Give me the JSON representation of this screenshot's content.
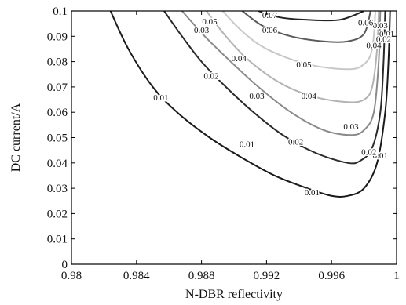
{
  "chart_data": {
    "type": "contour",
    "xlabel": "N-DBR reflectivity",
    "ylabel": "DC current/A",
    "xlim": [
      0.98,
      1.0
    ],
    "ylim": [
      0,
      0.1
    ],
    "x_ticks": [
      0.98,
      0.984,
      0.988,
      0.992,
      0.996,
      1.0
    ],
    "x_tick_labels": [
      "0.98",
      "0.984",
      "0.988",
      "0.992",
      "0.996",
      "1"
    ],
    "y_ticks": [
      0,
      0.01,
      0.02,
      0.03,
      0.04,
      0.05,
      0.06,
      0.07,
      0.08,
      0.09,
      0.1
    ],
    "y_tick_labels": [
      "0",
      "0.01",
      "0.02",
      "0.03",
      "0.04",
      "0.05",
      "0.06",
      "0.07",
      "0.08",
      "0.09",
      "0.1"
    ],
    "grid": false,
    "contours": [
      {
        "level": 0.01,
        "color": "#1a1a1a",
        "points": [
          [
            0.9824,
            0.1
          ],
          [
            0.9835,
            0.085
          ],
          [
            0.985,
            0.07
          ],
          [
            0.9865,
            0.06
          ],
          [
            0.9885,
            0.05
          ],
          [
            0.9905,
            0.042
          ],
          [
            0.9925,
            0.035
          ],
          [
            0.9945,
            0.03
          ],
          [
            0.996,
            0.027
          ],
          [
            0.997,
            0.027
          ],
          [
            0.998,
            0.03
          ],
          [
            0.9988,
            0.04
          ],
          [
            0.9993,
            0.06
          ],
          [
            0.9995,
            0.08
          ],
          [
            0.9996,
            0.1
          ]
        ],
        "labels": [
          {
            "x": 0.9855,
            "y": 0.066,
            "text": "0.01"
          },
          {
            "x": 0.9908,
            "y": 0.0475,
            "text": "0.01"
          },
          {
            "x": 0.9948,
            "y": 0.0285,
            "text": "0.01"
          },
          {
            "x": 0.999,
            "y": 0.043,
            "text": "0.01"
          },
          {
            "x": 0.9994,
            "y": 0.091,
            "text": "0.01"
          }
        ]
      },
      {
        "level": 0.02,
        "color": "#2a2a2a",
        "points": [
          [
            0.9857,
            0.1
          ],
          [
            0.9868,
            0.09
          ],
          [
            0.988,
            0.08
          ],
          [
            0.9895,
            0.07
          ],
          [
            0.9912,
            0.06
          ],
          [
            0.993,
            0.051
          ],
          [
            0.995,
            0.044
          ],
          [
            0.997,
            0.04
          ],
          [
            0.9978,
            0.041
          ],
          [
            0.9985,
            0.046
          ],
          [
            0.999,
            0.06
          ],
          [
            0.9992,
            0.08
          ],
          [
            0.9993,
            0.1
          ]
        ],
        "labels": [
          {
            "x": 0.9886,
            "y": 0.0745,
            "text": "0.02"
          },
          {
            "x": 0.9938,
            "y": 0.0485,
            "text": "0.02"
          },
          {
            "x": 0.9983,
            "y": 0.0445,
            "text": "0.02"
          },
          {
            "x": 0.9992,
            "y": 0.089,
            "text": "0.02"
          }
        ]
      },
      {
        "level": 0.03,
        "color": "#8a8a8a",
        "points": [
          [
            0.9868,
            0.1
          ],
          [
            0.9882,
            0.09
          ],
          [
            0.9898,
            0.08
          ],
          [
            0.9915,
            0.07
          ],
          [
            0.9935,
            0.06
          ],
          [
            0.9955,
            0.053
          ],
          [
            0.9972,
            0.051
          ],
          [
            0.998,
            0.053
          ],
          [
            0.9986,
            0.06
          ],
          [
            0.9989,
            0.08
          ],
          [
            0.999,
            0.1
          ]
        ],
        "labels": [
          {
            "x": 0.988,
            "y": 0.0925,
            "text": "0.03"
          },
          {
            "x": 0.9914,
            "y": 0.0665,
            "text": "0.03"
          },
          {
            "x": 0.9972,
            "y": 0.0545,
            "text": "0.03"
          },
          {
            "x": 0.999,
            "y": 0.0945,
            "text": "0.03"
          }
        ]
      },
      {
        "level": 0.04,
        "color": "#b3b3b3",
        "points": [
          [
            0.9883,
            0.1
          ],
          [
            0.9895,
            0.09
          ],
          [
            0.991,
            0.08
          ],
          [
            0.993,
            0.071
          ],
          [
            0.995,
            0.066
          ],
          [
            0.997,
            0.064
          ],
          [
            0.998,
            0.065
          ],
          [
            0.9985,
            0.07
          ],
          [
            0.9988,
            0.085
          ],
          [
            0.9989,
            0.1
          ]
        ],
        "labels": [
          {
            "x": 0.9903,
            "y": 0.0815,
            "text": "0.04"
          },
          {
            "x": 0.9946,
            "y": 0.0665,
            "text": "0.04"
          },
          {
            "x": 0.9986,
            "y": 0.0865,
            "text": "0.04"
          }
        ]
      },
      {
        "level": 0.05,
        "color": "#c8c8c8",
        "points": [
          [
            0.9893,
            0.1
          ],
          [
            0.9905,
            0.092
          ],
          [
            0.992,
            0.085
          ],
          [
            0.9945,
            0.079
          ],
          [
            0.997,
            0.077
          ],
          [
            0.998,
            0.079
          ],
          [
            0.9985,
            0.085
          ],
          [
            0.9987,
            0.1
          ]
        ],
        "labels": [
          {
            "x": 0.9885,
            "y": 0.096,
            "text": "0.05"
          },
          {
            "x": 0.9943,
            "y": 0.079,
            "text": "0.05"
          }
        ]
      },
      {
        "level": 0.06,
        "color": "#5a5a5a",
        "points": [
          [
            0.9905,
            0.1
          ],
          [
            0.9918,
            0.094
          ],
          [
            0.9935,
            0.09
          ],
          [
            0.9955,
            0.088
          ],
          [
            0.997,
            0.088
          ],
          [
            0.998,
            0.091
          ],
          [
            0.9984,
            0.1
          ]
        ],
        "labels": [
          {
            "x": 0.9922,
            "y": 0.0925,
            "text": "0.06"
          },
          {
            "x": 0.9981,
            "y": 0.0955,
            "text": "0.06"
          }
        ]
      },
      {
        "level": 0.07,
        "color": "#222222",
        "points": [
          [
            0.9915,
            0.1
          ],
          [
            0.9928,
            0.0975
          ],
          [
            0.9945,
            0.0965
          ],
          [
            0.9965,
            0.0965
          ],
          [
            0.998,
            0.1
          ]
        ],
        "labels": [
          {
            "x": 0.9922,
            "y": 0.0985,
            "text": "0.07"
          }
        ]
      }
    ]
  }
}
